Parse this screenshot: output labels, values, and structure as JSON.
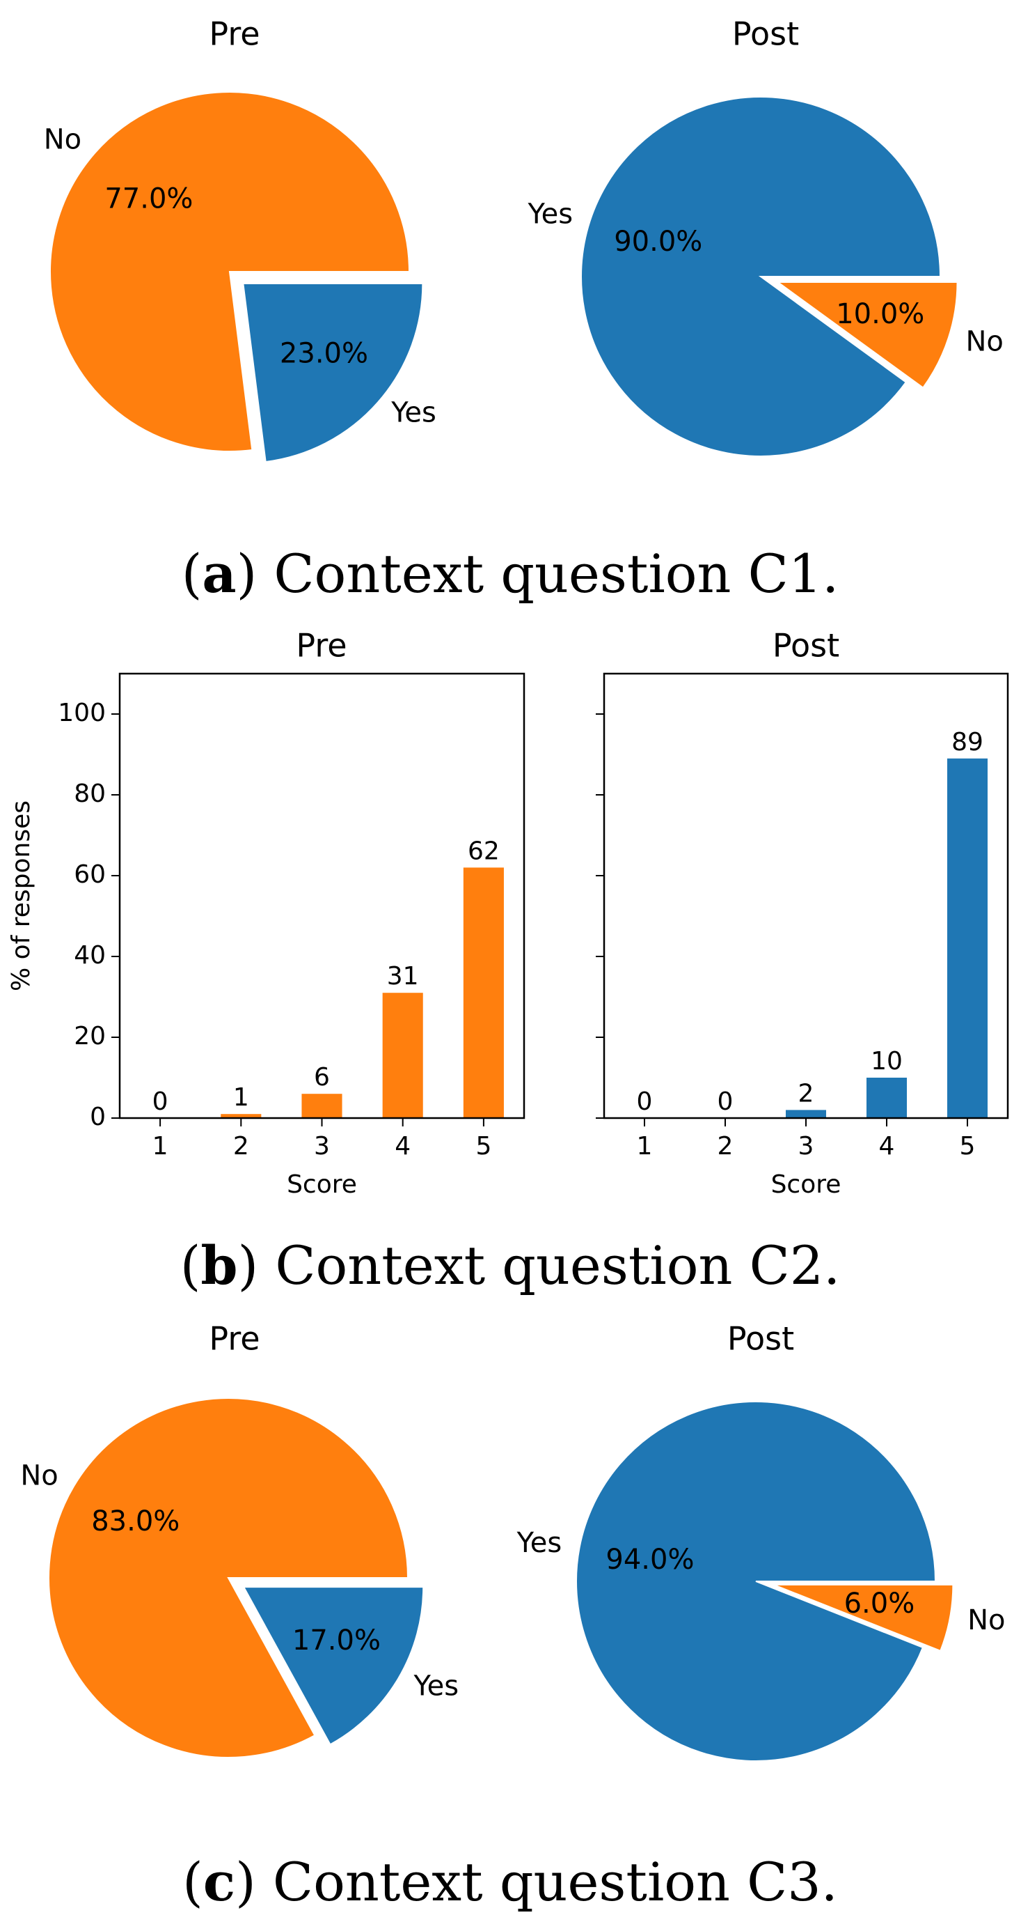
{
  "captions": [
    {
      "letter": "a",
      "text": "Context question C1."
    },
    {
      "letter": "b",
      "text": "Context question C2."
    },
    {
      "letter": "c",
      "text": "Context question C3."
    }
  ],
  "colors": {
    "orange": "#ff7f0e",
    "blue": "#1f77b4"
  },
  "chart_data": [
    {
      "type": "pie",
      "title": "Pre",
      "labels": [
        "No",
        "Yes"
      ],
      "values": [
        77.0,
        23.0
      ],
      "percent_labels": [
        "77.0%",
        "23.0%"
      ],
      "colors": [
        "#ff7f0e",
        "#1f77b4"
      ],
      "exploded": [
        "Yes"
      ]
    },
    {
      "type": "pie",
      "title": "Post",
      "labels": [
        "Yes",
        "No"
      ],
      "values": [
        90.0,
        10.0
      ],
      "percent_labels": [
        "90.0%",
        "10.0%"
      ],
      "colors": [
        "#1f77b4",
        "#ff7f0e"
      ],
      "exploded": [
        "No"
      ]
    },
    {
      "type": "bar",
      "title": "Pre",
      "categories": [
        "1",
        "2",
        "3",
        "4",
        "5"
      ],
      "values": [
        0,
        1,
        6,
        31,
        62
      ],
      "value_labels": [
        "0",
        "1",
        "6",
        "31",
        "62"
      ],
      "color": "#ff7f0e",
      "xlabel": "Score",
      "ylabel": "% of responses",
      "ylim": [
        0,
        110
      ],
      "yticks": [
        "0",
        "20",
        "40",
        "60",
        "80",
        "100"
      ]
    },
    {
      "type": "bar",
      "title": "Post",
      "categories": [
        "1",
        "2",
        "3",
        "4",
        "5"
      ],
      "values": [
        0,
        0,
        2,
        10,
        89
      ],
      "value_labels": [
        "0",
        "0",
        "2",
        "10",
        "89"
      ],
      "color": "#1f77b4",
      "xlabel": "Score",
      "ylabel": "",
      "ylim": [
        0,
        110
      ],
      "yticks": [
        "0",
        "20",
        "40",
        "60",
        "80",
        "100"
      ]
    },
    {
      "type": "pie",
      "title": "Pre",
      "labels": [
        "No",
        "Yes"
      ],
      "values": [
        83.0,
        17.0
      ],
      "percent_labels": [
        "83.0%",
        "17.0%"
      ],
      "colors": [
        "#ff7f0e",
        "#1f77b4"
      ],
      "exploded": [
        "Yes"
      ]
    },
    {
      "type": "pie",
      "title": "Post",
      "labels": [
        "Yes",
        "No"
      ],
      "values": [
        94.0,
        6.0
      ],
      "percent_labels": [
        "94.0%",
        "6.0%"
      ],
      "colors": [
        "#1f77b4",
        "#ff7f0e"
      ],
      "exploded": [
        "No"
      ]
    }
  ]
}
